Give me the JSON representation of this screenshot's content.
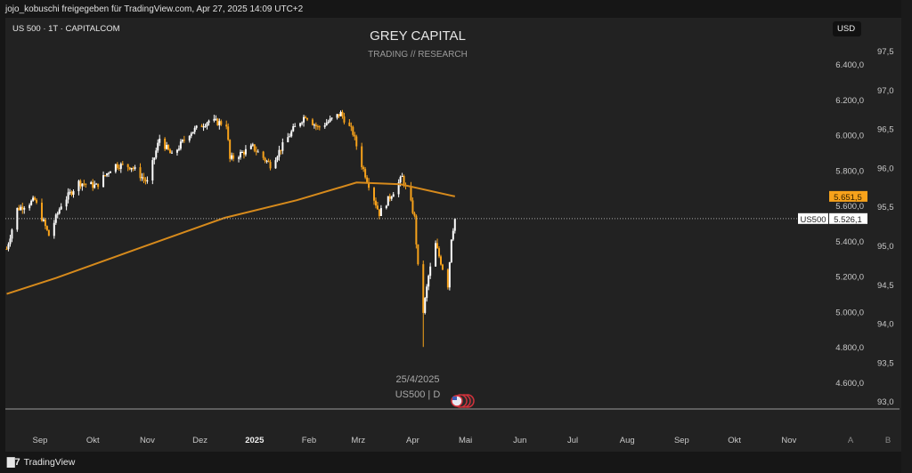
{
  "header": {
    "share_text": "jojo_kobuschi freigegeben für TradingView.com, Apr 27, 2025 14:09 UTC+2"
  },
  "symbol_title": "US 500 · 1T · CAPITALCOM",
  "watermark": {
    "title": "GREY CAPITAL",
    "subtitle": "TRADING // RESEARCH"
  },
  "annotation": {
    "date": "25/4/2025",
    "symbol": "US500 | D"
  },
  "currency": "USD",
  "footer": {
    "logo_text": "TradingView"
  },
  "colors": {
    "up": "#ffffff",
    "down": "#f7a21b",
    "ma": "#d68a1c",
    "price_label_bg": "#ffffff",
    "ma_label_bg": "#f7a21b"
  },
  "chart_data": {
    "type": "candlestick",
    "price_axis": {
      "range": [
        4530,
        6480
      ],
      "ticks": [
        "6.400,0",
        "6.200,0",
        "6.000,0",
        "5.800,0",
        "5.600,0",
        "5.400,0",
        "5.200,0",
        "5.000,0",
        "4.800,0",
        "4.600,0"
      ],
      "tick_values": [
        6400,
        6200,
        6000,
        5800,
        5600,
        5400,
        5200,
        5000,
        4800,
        4600
      ]
    },
    "secondary_axis": {
      "ticks": [
        "97,5",
        "97,0",
        "96,5",
        "96,0",
        "95,5",
        "95,0",
        "94,5",
        "94,0",
        "93,5",
        "93,0"
      ],
      "tick_values": [
        97.5,
        97.0,
        96.5,
        96.0,
        95.5,
        95.0,
        94.5,
        94.0,
        93.5,
        93.0
      ]
    },
    "time_axis": {
      "ticks": [
        {
          "label": "Sep",
          "date": "2024-09-01"
        },
        {
          "label": "Okt",
          "date": "2024-10-01"
        },
        {
          "label": "Nov",
          "date": "2024-11-01"
        },
        {
          "label": "Dez",
          "date": "2024-12-01"
        },
        {
          "label": "2025",
          "date": "2025-01-01"
        },
        {
          "label": "Feb",
          "date": "2025-02-01"
        },
        {
          "label": "Mrz",
          "date": "2025-03-01"
        },
        {
          "label": "Apr",
          "date": "2025-04-01"
        },
        {
          "label": "Mai",
          "date": "2025-05-01"
        },
        {
          "label": "Jun",
          "date": "2025-06-01"
        },
        {
          "label": "Jul",
          "date": "2025-07-01"
        },
        {
          "label": "Aug",
          "date": "2025-08-01"
        },
        {
          "label": "Sep",
          "date": "2025-09-01"
        },
        {
          "label": "Okt",
          "date": "2025-10-01"
        },
        {
          "label": "Nov",
          "date": "2025-11-01"
        }
      ],
      "extra": [
        "A",
        "B"
      ]
    },
    "closes": [
      [
        "2024-08-13",
        5354
      ],
      [
        "2024-08-19",
        5580
      ],
      [
        "2024-08-29",
        5630
      ],
      [
        "2024-09-06",
        5430
      ],
      [
        "2024-09-13",
        5605
      ],
      [
        "2024-09-23",
        5730
      ],
      [
        "2024-10-03",
        5710
      ],
      [
        "2024-10-13",
        5830
      ],
      [
        "2024-10-23",
        5820
      ],
      [
        "2024-11-01",
        5730
      ],
      [
        "2024-11-08",
        5980
      ],
      [
        "2024-11-15",
        5880
      ],
      [
        "2024-11-25",
        6010
      ],
      [
        "2024-12-06",
        6080
      ],
      [
        "2024-12-16",
        6060
      ],
      [
        "2024-12-18",
        5860
      ],
      [
        "2024-12-31",
        5930
      ],
      [
        "2025-01-10",
        5830
      ],
      [
        "2025-01-23",
        6030
      ],
      [
        "2025-01-30",
        6110
      ],
      [
        "2025-02-06",
        6040
      ],
      [
        "2025-02-13",
        6080
      ],
      [
        "2025-02-19",
        6120
      ],
      [
        "2025-02-26",
        6010
      ],
      [
        "2025-03-03",
        5830
      ],
      [
        "2025-03-13",
        5555
      ],
      [
        "2025-03-21",
        5680
      ],
      [
        "2025-03-26",
        5760
      ],
      [
        "2025-03-31",
        5610
      ],
      [
        "2025-04-02",
        5530
      ],
      [
        "2025-04-04",
        5250
      ],
      [
        "2025-04-07",
        5000
      ],
      [
        "2025-04-10",
        5200
      ],
      [
        "2025-04-14",
        5380
      ],
      [
        "2025-04-17",
        5280
      ],
      [
        "2025-04-21",
        5150
      ],
      [
        "2025-04-23",
        5420
      ],
      [
        "2025-04-25",
        5526
      ]
    ],
    "low_point": [
      "2025-04-07",
      4800
    ],
    "moving_average": [
      [
        "2024-08-13",
        5100
      ],
      [
        "2024-09-10",
        5190
      ],
      [
        "2024-10-25",
        5350
      ],
      [
        "2024-12-15",
        5530
      ],
      [
        "2025-01-25",
        5630
      ],
      [
        "2025-02-28",
        5730
      ],
      [
        "2025-03-25",
        5720
      ],
      [
        "2025-04-25",
        5651.5
      ]
    ],
    "last_price": {
      "symbol": "US500",
      "value": 5526.1,
      "label": "5.526,1"
    },
    "ma_last": {
      "value": 5651.5,
      "label": "5.651,5"
    }
  }
}
